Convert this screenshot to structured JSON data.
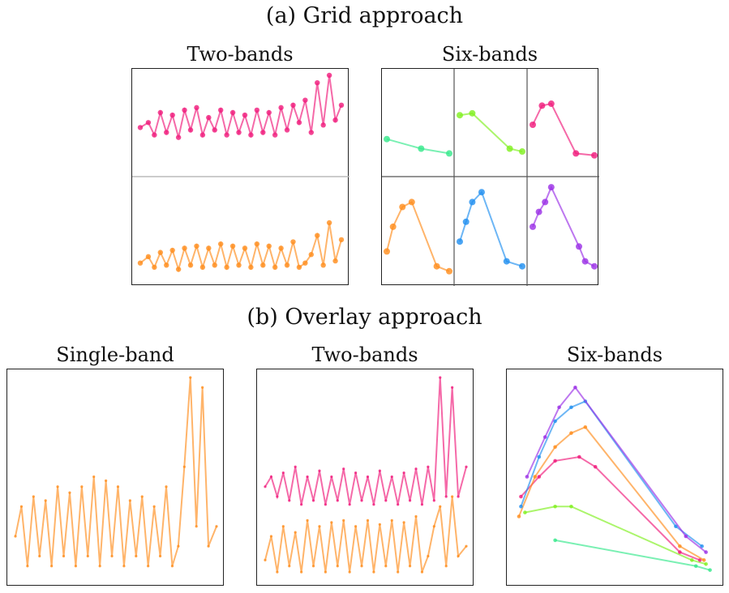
{
  "headings": {
    "grid": "(a) Grid approach",
    "overlay": "(b) Overlay approach"
  },
  "panel_titles": {
    "grid_two": "Two-bands",
    "grid_six": "Six-bands",
    "overlay_single": "Single-band",
    "overlay_two": "Two-bands",
    "overlay_six": "Six-bands"
  },
  "colors": {
    "magenta": "#f0197a",
    "orange": "#ff8c1a",
    "green": "#33e88a",
    "lime": "#7ef01c",
    "blue": "#1f8ff0",
    "purple": "#9a2ee6"
  },
  "chart_data": [
    {
      "type": "line",
      "panel": "grid_two_band_top",
      "color": "#f0197a",
      "x": [
        0,
        4,
        7,
        10,
        13,
        16,
        19,
        22,
        25,
        28,
        31,
        34,
        37,
        40,
        43,
        46,
        49,
        52,
        55,
        58,
        61,
        64,
        67,
        70,
        73,
        76,
        79,
        82,
        85,
        88,
        91,
        94,
        97,
        100
      ],
      "y": [
        0.45,
        0.55,
        0.3,
        0.75,
        0.35,
        0.7,
        0.25,
        0.8,
        0.4,
        0.85,
        0.3,
        0.65,
        0.4,
        0.8,
        0.3,
        0.75,
        0.35,
        0.7,
        0.3,
        0.8,
        0.35,
        0.75,
        0.3,
        0.85,
        0.4,
        0.9,
        0.55,
        1.0,
        0.35,
        1.35,
        0.5,
        1.5,
        0.6,
        0.9
      ]
    },
    {
      "type": "line",
      "panel": "grid_two_band_bottom",
      "color": "#ff8c1a",
      "x": [
        0,
        4,
        7,
        10,
        13,
        16,
        19,
        22,
        25,
        28,
        31,
        34,
        37,
        40,
        43,
        46,
        49,
        52,
        55,
        58,
        61,
        64,
        67,
        70,
        73,
        76,
        79,
        82,
        85,
        88,
        91,
        94,
        97,
        100
      ],
      "y": [
        0.35,
        0.5,
        0.25,
        0.6,
        0.3,
        0.65,
        0.2,
        0.7,
        0.3,
        0.75,
        0.25,
        0.7,
        0.3,
        0.8,
        0.25,
        0.75,
        0.3,
        0.7,
        0.25,
        0.8,
        0.3,
        0.75,
        0.25,
        0.7,
        0.3,
        0.85,
        0.25,
        0.35,
        0.55,
        1.0,
        0.3,
        1.3,
        0.4,
        0.9
      ]
    },
    {
      "type": "line",
      "panel": "grid_six_band_1",
      "color": "#33e88a",
      "x": [
        0,
        0.55,
        1
      ],
      "y": [
        0.35,
        0.25,
        0.2
      ]
    },
    {
      "type": "line",
      "panel": "grid_six_band_2",
      "color": "#7ef01c",
      "x": [
        0,
        0.2,
        0.8,
        1
      ],
      "y": [
        0.6,
        0.62,
        0.25,
        0.22
      ]
    },
    {
      "type": "line",
      "panel": "grid_six_band_3",
      "color": "#f0197a",
      "x": [
        0,
        0.15,
        0.3,
        0.7,
        1
      ],
      "y": [
        0.5,
        0.7,
        0.72,
        0.2,
        0.18
      ]
    },
    {
      "type": "line",
      "panel": "grid_six_band_4",
      "color": "#ff8c1a",
      "x": [
        0,
        0.1,
        0.25,
        0.4,
        0.8,
        1
      ],
      "y": [
        0.3,
        0.55,
        0.75,
        0.8,
        0.15,
        0.1
      ]
    },
    {
      "type": "line",
      "panel": "grid_six_band_5",
      "color": "#1f8ff0",
      "x": [
        0,
        0.1,
        0.2,
        0.35,
        0.75,
        1
      ],
      "y": [
        0.4,
        0.6,
        0.8,
        0.9,
        0.2,
        0.15
      ]
    },
    {
      "type": "line",
      "panel": "grid_six_band_6",
      "color": "#9a2ee6",
      "x": [
        0,
        0.1,
        0.2,
        0.3,
        0.75,
        0.85,
        1
      ],
      "y": [
        0.55,
        0.7,
        0.8,
        0.95,
        0.35,
        0.2,
        0.15
      ]
    },
    {
      "type": "line",
      "panel": "overlay_single_band",
      "color": "#ff8c1a",
      "x": [
        0,
        3,
        6,
        9,
        12,
        15,
        18,
        21,
        24,
        27,
        30,
        33,
        36,
        39,
        42,
        45,
        48,
        51,
        54,
        57,
        60,
        63,
        66,
        69,
        72,
        75,
        78,
        81,
        84,
        87,
        90,
        93,
        96,
        100
      ],
      "y": [
        0.2,
        0.35,
        0.05,
        0.4,
        0.1,
        0.38,
        0.05,
        0.45,
        0.1,
        0.42,
        0.05,
        0.45,
        0.1,
        0.5,
        0.05,
        0.48,
        0.1,
        0.45,
        0.05,
        0.38,
        0.1,
        0.4,
        0.05,
        0.35,
        0.1,
        0.45,
        0.05,
        0.15,
        0.55,
        1.0,
        0.25,
        0.95,
        0.15,
        0.25
      ]
    },
    {
      "type": "line",
      "panel": "overlay_two_band_top",
      "color": "#f0197a",
      "x": [
        0,
        3,
        6,
        9,
        12,
        15,
        18,
        21,
        24,
        27,
        30,
        33,
        36,
        39,
        42,
        45,
        48,
        51,
        54,
        57,
        60,
        63,
        66,
        69,
        72,
        75,
        78,
        81,
        84,
        87,
        90,
        93,
        96,
        100
      ],
      "y": [
        0.45,
        0.5,
        0.4,
        0.52,
        0.38,
        0.55,
        0.36,
        0.5,
        0.38,
        0.53,
        0.36,
        0.5,
        0.38,
        0.54,
        0.36,
        0.52,
        0.38,
        0.5,
        0.36,
        0.53,
        0.38,
        0.5,
        0.36,
        0.52,
        0.38,
        0.54,
        0.36,
        0.55,
        0.38,
        1.0,
        0.4,
        0.95,
        0.4,
        0.55
      ]
    },
    {
      "type": "line",
      "panel": "overlay_two_band_bottom",
      "color": "#ff8c1a",
      "x": [
        0,
        3,
        6,
        9,
        12,
        15,
        18,
        21,
        24,
        27,
        30,
        33,
        36,
        39,
        42,
        45,
        48,
        51,
        54,
        57,
        60,
        63,
        66,
        69,
        72,
        75,
        78,
        81,
        84,
        87,
        90,
        93,
        96,
        100
      ],
      "y": [
        0.08,
        0.2,
        0.02,
        0.25,
        0.05,
        0.22,
        0.02,
        0.28,
        0.05,
        0.25,
        0.02,
        0.27,
        0.05,
        0.28,
        0.02,
        0.25,
        0.05,
        0.28,
        0.02,
        0.26,
        0.05,
        0.28,
        0.02,
        0.27,
        0.05,
        0.3,
        0.02,
        0.1,
        0.25,
        0.35,
        0.05,
        0.4,
        0.1,
        0.15
      ]
    },
    {
      "type": "line",
      "panel": "overlay_six_band",
      "series": [
        {
          "color": "#33e88a",
          "x": [
            0.2,
            0.9,
            0.97
          ],
          "y": [
            0.18,
            0.05,
            0.03
          ]
        },
        {
          "color": "#7ef01c",
          "x": [
            0.05,
            0.2,
            0.28,
            0.88,
            0.95
          ],
          "y": [
            0.32,
            0.35,
            0.35,
            0.08,
            0.06
          ]
        },
        {
          "color": "#f0197a",
          "x": [
            0.03,
            0.12,
            0.2,
            0.32,
            0.4,
            0.82,
            0.92
          ],
          "y": [
            0.4,
            0.5,
            0.58,
            0.6,
            0.55,
            0.12,
            0.08
          ]
        },
        {
          "color": "#ff8c1a",
          "x": [
            0.02,
            0.1,
            0.2,
            0.28,
            0.35,
            0.82,
            0.94
          ],
          "y": [
            0.3,
            0.5,
            0.65,
            0.72,
            0.75,
            0.15,
            0.08
          ]
        },
        {
          "color": "#1f8ff0",
          "x": [
            0.03,
            0.12,
            0.2,
            0.28,
            0.35,
            0.8,
            0.93
          ],
          "y": [
            0.35,
            0.6,
            0.78,
            0.85,
            0.88,
            0.25,
            0.15
          ]
        },
        {
          "color": "#9a2ee6",
          "x": [
            0.06,
            0.15,
            0.22,
            0.3,
            0.85,
            0.95
          ],
          "y": [
            0.5,
            0.7,
            0.85,
            0.95,
            0.2,
            0.12
          ]
        }
      ]
    }
  ]
}
